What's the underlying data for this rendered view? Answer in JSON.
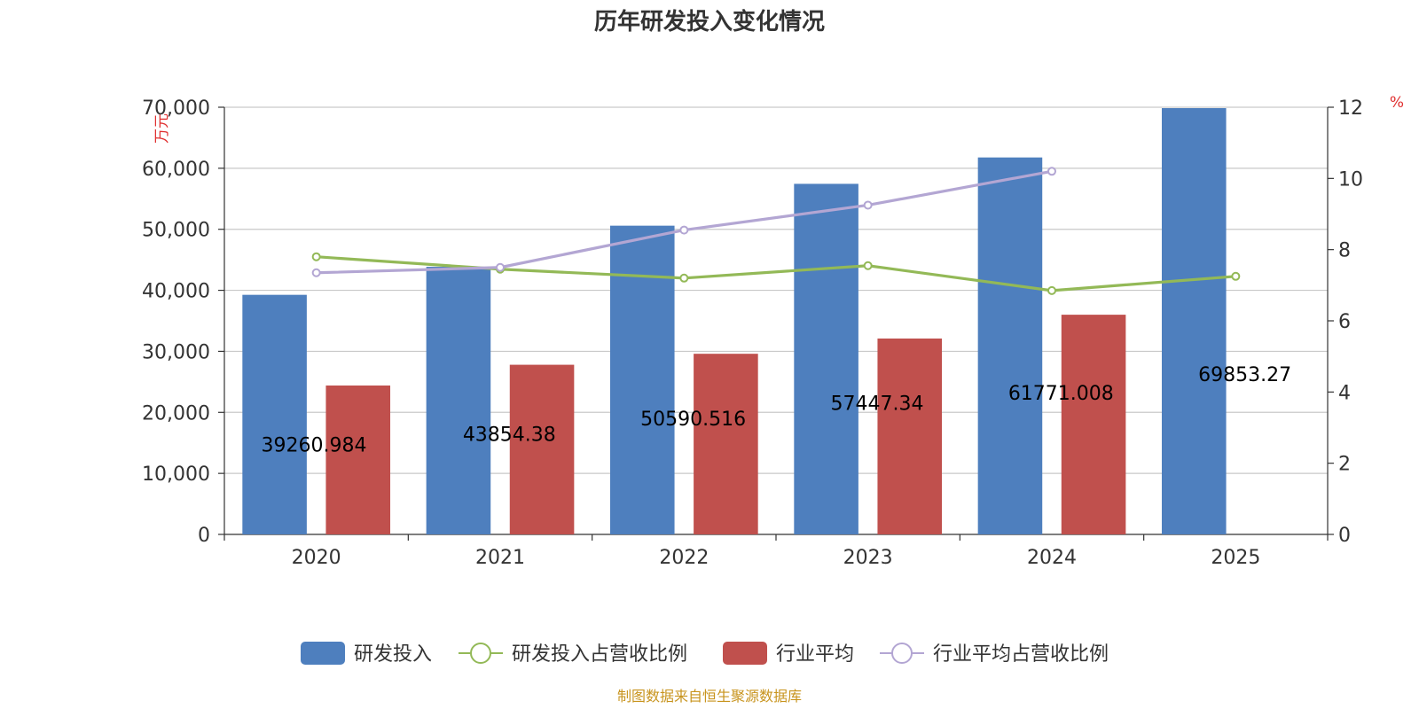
{
  "chart_data": {
    "type": "bar",
    "title": "历年研发投入变化情况",
    "categories": [
      "2020",
      "2021",
      "2022",
      "2023",
      "2024",
      "2025"
    ],
    "y_left": {
      "unit": "万元",
      "min": 0,
      "max": 70000,
      "ticks": [
        0,
        10000,
        20000,
        30000,
        40000,
        50000,
        60000,
        70000
      ],
      "tick_labels": [
        "0",
        "10,000",
        "20,000",
        "30,000",
        "40,000",
        "50,000",
        "60,000",
        "70,000"
      ]
    },
    "y_right": {
      "unit": "%",
      "min": 0,
      "max": 12,
      "ticks": [
        0,
        2,
        4,
        6,
        8,
        10,
        12
      ],
      "tick_labels": [
        "0",
        "2",
        "4",
        "6",
        "8",
        "10",
        "12"
      ]
    },
    "grid": true,
    "legend_position": "bottom",
    "series": [
      {
        "name": "研发投入",
        "type": "bar",
        "axis": "left",
        "color": "#4e7fbe",
        "values": [
          39260.984,
          43854.38,
          50590.516,
          57447.34,
          61771.008,
          69853.27
        ],
        "labels": [
          "39260.984",
          "43854.38",
          "50590.516",
          "57447.34",
          "61771.008",
          "69853.27"
        ]
      },
      {
        "name": "研发投入占营收比例",
        "type": "line",
        "axis": "right",
        "color": "#93b957",
        "values": [
          7.8,
          7.45,
          7.2,
          7.55,
          6.85,
          7.25
        ]
      },
      {
        "name": "行业平均",
        "type": "bar",
        "axis": "left",
        "color": "#c0504d",
        "values": [
          24400,
          27800,
          29600,
          32100,
          36000,
          null
        ]
      },
      {
        "name": "行业平均占营收比例",
        "type": "line",
        "axis": "right",
        "color": "#b3a6d3",
        "values": [
          7.35,
          7.5,
          8.55,
          9.25,
          10.2,
          null
        ]
      }
    ]
  },
  "source": "制图数据来自恒生聚源数据库"
}
